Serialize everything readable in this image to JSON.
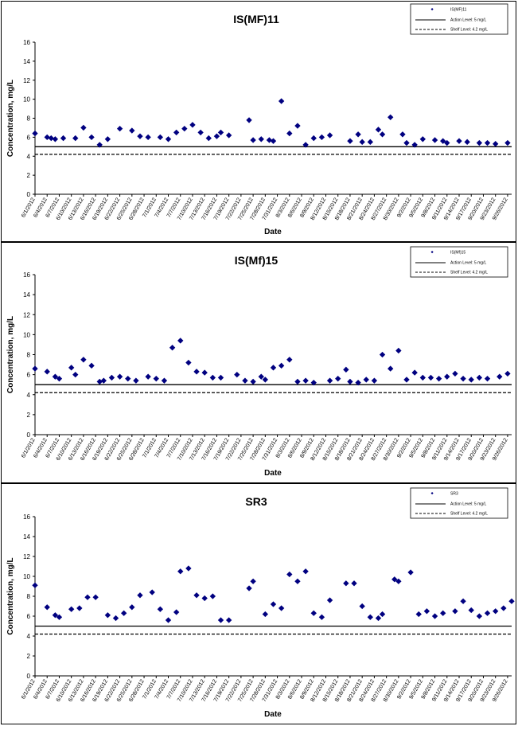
{
  "chart_data": [
    {
      "type": "scatter",
      "title": "IS(MF)11",
      "xlabel": "Date",
      "ylabel": "Concentration, mg/L",
      "ylim": [
        0,
        16
      ],
      "yticks": [
        0,
        2,
        4,
        6,
        8,
        10,
        12,
        14,
        16
      ],
      "grid": false,
      "legend_position": "top-right",
      "legend": {
        "series_label": "IS(MF)11",
        "action_label": "Action Level: 5 mg/L",
        "shelf_label": "Shelf Level: 4.2 mg/L"
      },
      "reference_lines": [
        {
          "name": "Action Level: 5 mg/L",
          "value": 5,
          "style": "solid"
        },
        {
          "name": "Shelf Level: 4.2 mg/L",
          "value": 4.2,
          "style": "dashed"
        }
      ],
      "tick_labels": [
        "6/1/2012",
        "6/4/2012",
        "6/7/2012",
        "6/10/2012",
        "6/13/2012",
        "6/16/2012",
        "6/19/2012",
        "6/22/2012",
        "6/25/2012",
        "6/28/2012",
        "7/1/2012",
        "7/4/2012",
        "7/7/2012",
        "7/10/2012",
        "7/13/2012",
        "7/16/2012",
        "7/19/2012",
        "7/22/2012",
        "7/25/2012",
        "7/28/2012",
        "7/31/2012",
        "8/3/2012",
        "8/6/2012",
        "8/9/2012",
        "8/12/2012",
        "8/15/2012",
        "8/18/2012",
        "8/21/2012",
        "8/24/2012",
        "8/27/2012",
        "8/30/2012",
        "9/2/2012",
        "9/5/2012",
        "9/8/2012",
        "9/11/2012",
        "9/14/2012",
        "9/17/2012",
        "9/20/2012",
        "9/23/2012",
        "9/26/2012"
      ],
      "series": [
        {
          "x": [
            "6/1/2012",
            "6/4/2012",
            "6/5/2012",
            "6/6/2012",
            "6/8/2012",
            "6/11/2012",
            "6/13/2012",
            "6/15/2012",
            "6/17/2012",
            "6/19/2012",
            "6/22/2012",
            "6/25/2012",
            "6/27/2012",
            "6/29/2012",
            "7/2/2012",
            "7/4/2012",
            "7/6/2012",
            "7/8/2012",
            "7/10/2012",
            "7/12/2012",
            "7/14/2012",
            "7/16/2012",
            "7/17/2012",
            "7/19/2012",
            "7/24/2012",
            "7/25/2012",
            "7/27/2012",
            "7/29/2012",
            "7/30/2012",
            "8/1/2012",
            "8/3/2012",
            "8/5/2012",
            "8/7/2012",
            "8/9/2012",
            "8/11/2012",
            "8/13/2012",
            "8/18/2012",
            "8/20/2012",
            "8/21/2012",
            "8/23/2012",
            "8/25/2012",
            "8/26/2012",
            "8/28/2012",
            "8/31/2012",
            "9/1/2012",
            "9/3/2012",
            "9/5/2012",
            "9/8/2012",
            "9/10/2012",
            "9/11/2012",
            "9/14/2012",
            "9/16/2012",
            "9/19/2012",
            "9/21/2012",
            "9/23/2012",
            "9/26/2012"
          ],
          "y": [
            6.4,
            6.0,
            5.9,
            5.8,
            5.9,
            5.9,
            7.0,
            6.0,
            5.2,
            5.8,
            6.9,
            6.7,
            6.1,
            6.0,
            6.0,
            5.8,
            6.5,
            6.9,
            7.3,
            6.5,
            5.9,
            6.1,
            6.5,
            6.2,
            7.8,
            5.7,
            5.8,
            5.7,
            5.6,
            9.8,
            6.4,
            7.2,
            5.2,
            5.9,
            6.0,
            6.2,
            5.6,
            6.3,
            5.5,
            5.5,
            6.8,
            6.3,
            8.1,
            6.3,
            5.4,
            5.2,
            5.8,
            5.7,
            5.6,
            5.4,
            5.6,
            5.5,
            5.4,
            5.4,
            5.3,
            5.4
          ]
        }
      ]
    },
    {
      "type": "scatter",
      "title": "IS(Mf)15",
      "xlabel": "Date",
      "ylabel": "Concentration, mg/L",
      "ylim": [
        0,
        16
      ],
      "yticks": [
        0,
        2,
        4,
        6,
        8,
        10,
        12,
        14,
        16
      ],
      "grid": false,
      "legend_position": "top-right",
      "legend": {
        "series_label": "IS(Mf)15",
        "action_label": "Action Level: 5 mg/L",
        "shelf_label": "Shelf Level: 4.2 mg/L"
      },
      "reference_lines": [
        {
          "name": "Action Level: 5 mg/L",
          "value": 5,
          "style": "solid"
        },
        {
          "name": "Shelf Level: 4.2 mg/L",
          "value": 4.2,
          "style": "dashed"
        }
      ],
      "tick_labels": [
        "6/1/2012",
        "6/4/2012",
        "6/7/2012",
        "6/10/2012",
        "6/13/2012",
        "6/16/2012",
        "6/19/2012",
        "6/22/2012",
        "6/25/2012",
        "6/28/2012",
        "7/1/2012",
        "7/4/2012",
        "7/7/2012",
        "7/10/2012",
        "7/13/2012",
        "7/16/2012",
        "7/19/2012",
        "7/22/2012",
        "7/25/2012",
        "7/28/2012",
        "7/31/2012",
        "8/3/2012",
        "8/6/2012",
        "8/9/2012",
        "8/12/2012",
        "8/15/2012",
        "8/18/2012",
        "8/21/2012",
        "8/24/2012",
        "8/27/2012",
        "8/30/2012",
        "9/2/2012",
        "9/5/2012",
        "9/8/2012",
        "9/11/2012",
        "9/14/2012",
        "9/17/2012",
        "9/20/2012",
        "9/23/2012",
        "9/26/2012"
      ],
      "series": [
        {
          "x": [
            "6/1/2012",
            "6/4/2012",
            "6/6/2012",
            "6/7/2012",
            "6/10/2012",
            "6/11/2012",
            "6/13/2012",
            "6/15/2012",
            "6/17/2012",
            "6/18/2012",
            "6/20/2012",
            "6/22/2012",
            "6/24/2012",
            "6/26/2012",
            "6/29/2012",
            "7/1/2012",
            "7/3/2012",
            "7/5/2012",
            "7/7/2012",
            "7/9/2012",
            "7/11/2012",
            "7/13/2012",
            "7/15/2012",
            "7/17/2012",
            "7/21/2012",
            "7/23/2012",
            "7/25/2012",
            "7/27/2012",
            "7/28/2012",
            "7/30/2012",
            "8/1/2012",
            "8/3/2012",
            "8/5/2012",
            "8/7/2012",
            "8/9/2012",
            "8/13/2012",
            "8/15/2012",
            "8/17/2012",
            "8/18/2012",
            "8/20/2012",
            "8/22/2012",
            "8/24/2012",
            "8/26/2012",
            "8/28/2012",
            "8/30/2012",
            "9/1/2012",
            "9/3/2012",
            "9/5/2012",
            "9/7/2012",
            "9/9/2012",
            "9/11/2012",
            "9/13/2012",
            "9/15/2012",
            "9/17/2012",
            "9/19/2012",
            "9/21/2012",
            "9/24/2012",
            "9/26/2012"
          ],
          "y": [
            6.6,
            6.3,
            5.8,
            5.6,
            6.7,
            6.0,
            7.5,
            6.9,
            5.3,
            5.4,
            5.7,
            5.8,
            5.6,
            5.4,
            5.8,
            5.6,
            5.4,
            8.7,
            9.4,
            7.2,
            6.3,
            6.2,
            5.7,
            5.7,
            6.0,
            5.4,
            5.3,
            5.8,
            5.5,
            6.7,
            6.9,
            7.5,
            5.3,
            5.4,
            5.2,
            5.4,
            5.6,
            6.5,
            5.3,
            5.2,
            5.5,
            5.4,
            8.0,
            6.6,
            8.4,
            5.5,
            6.2,
            5.7,
            5.7,
            5.6,
            5.8,
            6.1,
            5.6,
            5.5,
            5.7,
            5.6,
            5.8,
            6.1
          ]
        }
      ]
    },
    {
      "type": "scatter",
      "title": "SR3",
      "xlabel": "Date",
      "ylabel": "Concentration, mg/L",
      "ylim": [
        0,
        16
      ],
      "yticks": [
        0,
        2,
        4,
        6,
        8,
        10,
        12,
        14,
        16
      ],
      "grid": false,
      "legend_position": "top-right",
      "legend": {
        "series_label": "SR3",
        "action_label": "Action Level: 5 mg/L",
        "shelf_label": "Shelf Level: 4.2 mg/L"
      },
      "reference_lines": [
        {
          "name": "Action Level: 5 mg/L",
          "value": 5,
          "style": "solid"
        },
        {
          "name": "Shelf Level: 4.2 mg/L",
          "value": 4.2,
          "style": "dashed"
        }
      ],
      "tick_labels": [
        "6/1/2012",
        "6/4/2012",
        "6/7/2012",
        "6/10/2012",
        "6/13/2012",
        "6/16/2012",
        "6/19/2012",
        "6/22/2012",
        "6/25/2012",
        "6/28/2012",
        "7/1/2012",
        "7/4/2012",
        "7/7/2012",
        "7/10/2012",
        "7/13/2012",
        "7/16/2012",
        "7/19/2012",
        "7/22/2012",
        "7/25/2012",
        "7/28/2012",
        "7/31/2012",
        "8/3/2012",
        "8/6/2012",
        "8/9/2012",
        "8/12/2012",
        "8/15/2012",
        "8/18/2012",
        "8/21/2012",
        "8/24/2012",
        "8/27/2012",
        "8/30/2012",
        "9/2/2012",
        "9/5/2012",
        "9/8/2012",
        "9/11/2012",
        "9/14/2012",
        "9/17/2012",
        "9/20/2012",
        "9/23/2012",
        "9/26/2012"
      ],
      "series": [
        {
          "x": [
            "6/1/2012",
            "6/4/2012",
            "6/6/2012",
            "6/7/2012",
            "6/10/2012",
            "6/12/2012",
            "6/14/2012",
            "6/16/2012",
            "6/19/2012",
            "6/21/2012",
            "6/23/2012",
            "6/25/2012",
            "6/27/2012",
            "6/30/2012",
            "7/2/2012",
            "7/4/2012",
            "7/6/2012",
            "7/7/2012",
            "7/9/2012",
            "7/11/2012",
            "7/13/2012",
            "7/15/2012",
            "7/17/2012",
            "7/19/2012",
            "7/24/2012",
            "7/25/2012",
            "7/28/2012",
            "7/30/2012",
            "8/1/2012",
            "8/3/2012",
            "8/5/2012",
            "8/7/2012",
            "8/9/2012",
            "8/11/2012",
            "8/13/2012",
            "8/17/2012",
            "8/19/2012",
            "8/21/2012",
            "8/23/2012",
            "8/25/2012",
            "8/26/2012",
            "8/29/2012",
            "8/30/2012",
            "9/2/2012",
            "9/4/2012",
            "9/6/2012",
            "9/8/2012",
            "9/10/2012",
            "9/13/2012",
            "9/15/2012",
            "9/17/2012",
            "9/19/2012",
            "9/21/2012",
            "9/23/2012",
            "9/25/2012",
            "9/27/2012"
          ],
          "y": [
            9.1,
            6.9,
            6.1,
            5.9,
            6.7,
            6.8,
            7.9,
            7.9,
            6.1,
            5.8,
            6.3,
            6.9,
            8.1,
            8.4,
            6.7,
            5.6,
            6.4,
            10.5,
            10.8,
            8.1,
            7.8,
            8.0,
            5.6,
            5.6,
            8.8,
            9.5,
            6.2,
            7.2,
            6.8,
            10.2,
            9.5,
            10.5,
            6.3,
            5.9,
            7.6,
            9.3,
            9.3,
            7.0,
            5.9,
            5.8,
            6.2,
            9.7,
            9.5,
            10.4,
            6.2,
            6.5,
            6.0,
            6.3,
            6.5,
            7.5,
            6.6,
            6.0,
            6.3,
            6.5,
            6.8,
            7.5
          ]
        }
      ]
    }
  ]
}
